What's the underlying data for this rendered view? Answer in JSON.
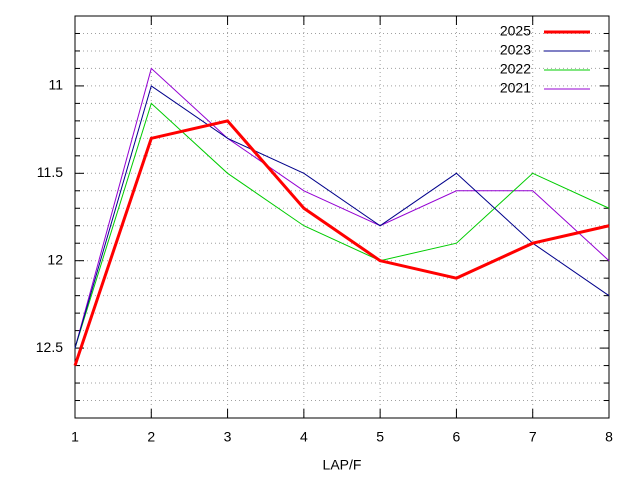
{
  "chart_data": {
    "type": "line",
    "xlabel": "LAP/F",
    "x": [
      1,
      2,
      3,
      4,
      5,
      6,
      7,
      8
    ],
    "series": [
      {
        "name": "2025",
        "color": "#ff0000",
        "width": 3,
        "values": [
          12.6,
          11.3,
          11.2,
          11.7,
          12.0,
          12.1,
          11.9,
          11.8
        ]
      },
      {
        "name": "2023",
        "color": "#00008b",
        "width": 1,
        "values": [
          12.5,
          11.0,
          11.3,
          11.5,
          11.8,
          11.5,
          11.9,
          12.2
        ]
      },
      {
        "name": "2022",
        "color": "#00cc00",
        "width": 1,
        "values": [
          12.5,
          11.1,
          11.5,
          11.8,
          12.0,
          11.9,
          11.5,
          11.7
        ]
      },
      {
        "name": "2021",
        "color": "#9400d3",
        "width": 1,
        "values": [
          12.5,
          10.9,
          11.3,
          11.6,
          11.8,
          11.6,
          11.6,
          12.0
        ]
      }
    ],
    "xlim": [
      1,
      8
    ],
    "xticks": [
      1,
      2,
      3,
      4,
      5,
      6,
      7,
      8
    ],
    "ylim": [
      10.6,
      12.9
    ],
    "y_reversed": true,
    "yticks": [
      11,
      11.5,
      12,
      12.5
    ],
    "yminorticks": [
      10.6,
      10.7,
      10.8,
      10.9,
      11.1,
      11.2,
      11.3,
      11.4,
      11.6,
      11.7,
      11.8,
      11.9,
      12.1,
      12.2,
      12.3,
      12.4,
      12.6,
      12.7,
      12.8,
      12.9
    ],
    "grid": true,
    "legend": "top-right"
  }
}
